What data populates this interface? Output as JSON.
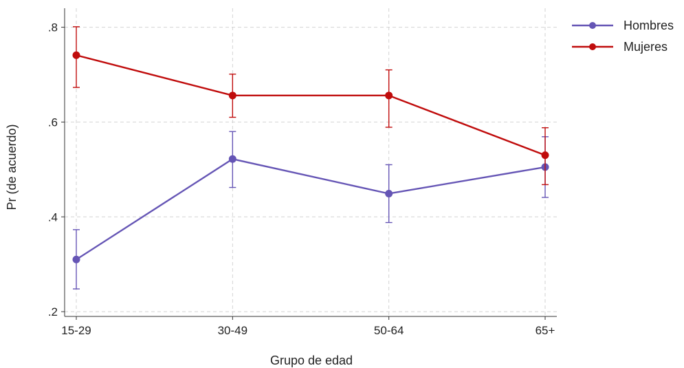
{
  "chart_data": {
    "type": "line",
    "categories": [
      "15-29",
      "30-49",
      "50-64",
      "65+"
    ],
    "xlabel": "Grupo de edad",
    "ylabel": "Pr (de acuerdo)",
    "ylim": [
      0.19,
      0.84
    ],
    "yticks": [
      0.2,
      0.4,
      0.6,
      0.8
    ],
    "ytick_labels": [
      ".2",
      ".4",
      ".6",
      ".8"
    ],
    "grid": true,
    "legend_position": "top-right",
    "series": [
      {
        "name": "Hombres",
        "color": "#6555b5",
        "values": [
          0.31,
          0.522,
          0.449,
          0.505
        ],
        "ci_low": [
          0.248,
          0.462,
          0.388,
          0.441
        ],
        "ci_high": [
          0.373,
          0.58,
          0.51,
          0.569
        ]
      },
      {
        "name": "Mujeres",
        "color": "#c00c0c",
        "values": [
          0.741,
          0.656,
          0.656,
          0.53
        ],
        "ci_low": [
          0.673,
          0.61,
          0.589,
          0.468
        ],
        "ci_high": [
          0.801,
          0.701,
          0.71,
          0.588
        ]
      }
    ]
  }
}
